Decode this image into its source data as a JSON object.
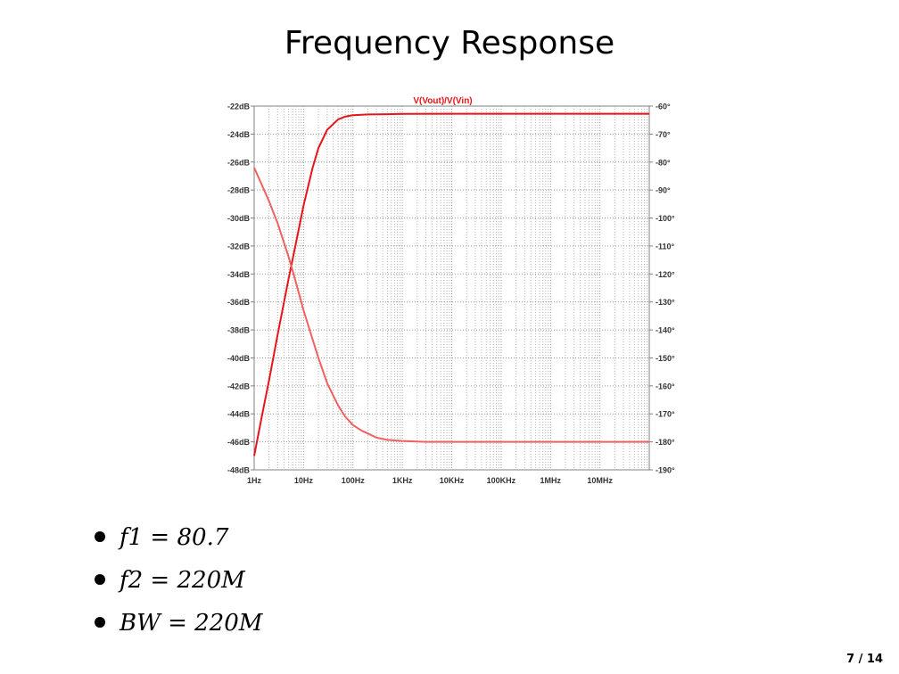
{
  "slide": {
    "title": "Frequency Response",
    "page": "7 / 14",
    "bullets": [
      "f1 = 80.7",
      "f2 = 220M",
      "BW = 220M"
    ]
  },
  "chart_data": {
    "type": "line",
    "title": "V(Vout)/V(Vin)",
    "x_scale": "log",
    "x_unit": "Hz",
    "xlim": [
      1,
      100000000
    ],
    "x_tick_labels": [
      "1Hz",
      "10Hz",
      "100Hz",
      "1KHz",
      "10KHz",
      "100KHz",
      "1MHz",
      "10MHz"
    ],
    "y_left": {
      "ylim": [
        -48,
        -22
      ],
      "tick_labels": [
        "-22dB",
        "-24dB",
        "-26dB",
        "-28dB",
        "-30dB",
        "-32dB",
        "-34dB",
        "-36dB",
        "-38dB",
        "-40dB",
        "-42dB",
        "-44dB",
        "-46dB",
        "-48dB"
      ]
    },
    "y_right": {
      "ylim": [
        -190,
        -60
      ],
      "tick_labels": [
        "-60°",
        "-70°",
        "-80°",
        "-90°",
        "-100°",
        "-110°",
        "-120°",
        "-130°",
        "-140°",
        "-150°",
        "-160°",
        "-170°",
        "-180°",
        "-190°"
      ]
    },
    "grid": true,
    "series": [
      {
        "axis": "left",
        "color": "#e8141a",
        "x": [
          1,
          1.5,
          2,
          3,
          5,
          7,
          10,
          15,
          20,
          30,
          50,
          70,
          100,
          200,
          500,
          1000,
          10000,
          100000,
          1000000,
          10000000,
          100000000
        ],
        "y": [
          -47.0,
          -43.8,
          -41.6,
          -38.3,
          -34.3,
          -31.8,
          -29.1,
          -26.5,
          -25.0,
          -23.7,
          -22.95,
          -22.75,
          -22.65,
          -22.6,
          -22.58,
          -22.56,
          -22.55,
          -22.55,
          -22.55,
          -22.55,
          -22.55
        ]
      },
      {
        "axis": "right",
        "color": "#f06060",
        "x": [
          1,
          1.5,
          2,
          3,
          5,
          7,
          10,
          15,
          20,
          30,
          50,
          70,
          100,
          150,
          200,
          300,
          500,
          1000,
          3000,
          10000,
          100000,
          1000000,
          10000000,
          100000000
        ],
        "y": [
          -82,
          -89,
          -94,
          -102,
          -114,
          -123,
          -133,
          -143,
          -150,
          -159,
          -167,
          -171,
          -174,
          -176,
          -177,
          -178.5,
          -179.3,
          -179.7,
          -180,
          -180,
          -180,
          -180,
          -180,
          -180
        ]
      }
    ]
  }
}
